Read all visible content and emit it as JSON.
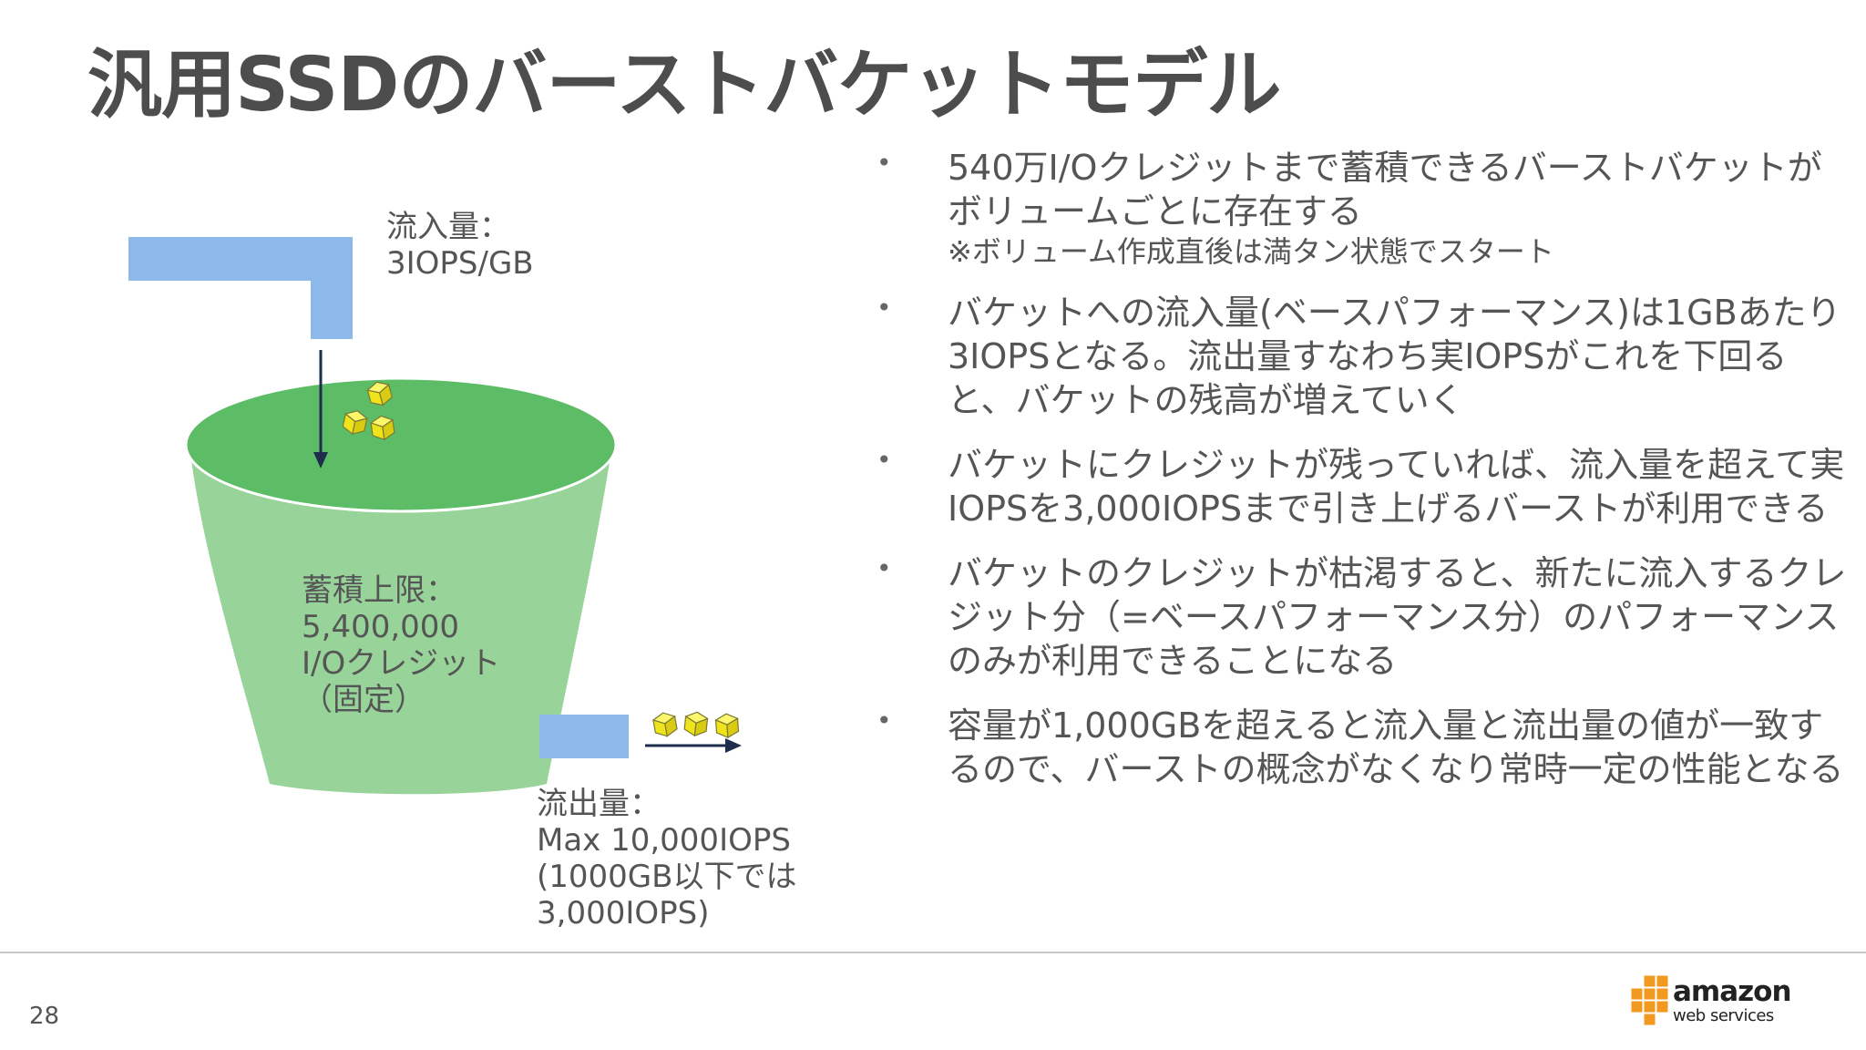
{
  "slide": {
    "title": "汎用SSDのバーストバケットモデル",
    "page_number": "28"
  },
  "diagram": {
    "inflow_label": [
      "流入量：",
      "3IOPS/GB"
    ],
    "capacity_label": [
      "蓄積上限：",
      "5,400,000",
      "I/Oクレジット",
      "（固定）"
    ],
    "outflow_label": [
      "流出量：",
      "Max 10,000IOPS",
      "(1000GB以下では",
      "3,000IOPS)"
    ]
  },
  "bullets": [
    {
      "text": "540万I/Oクレジットまで蓄積できるバーストバケットがボリュームごとに存在する",
      "sub": "※ボリューム作成直後は満タン状態でスタート"
    },
    {
      "text": "バケットへの流入量(ベースパフォーマンス)は1GBあたり3IOPSとなる。流出量すなわち実IOPSがこれを下回ると、バケットの残高が増えていく"
    },
    {
      "text": "バケットにクレジットが残っていれば、流入量を超えて実IOPSを3,000IOPSまで引き上げるバーストが利用できる"
    },
    {
      "text": "バケットのクレジットが枯渇すると、新たに流入するクレジット分（=ベースパフォーマンス分）のパフォーマンスのみが利用できることになる"
    },
    {
      "text": "容量が1,000GBを超えると流入量と流出量の値が一致するので、バーストの概念がなくなり常時一定の性能となる"
    }
  ],
  "logo": {
    "name": "amazon",
    "sub": "web services"
  },
  "colors": {
    "bucket_body": "#98d39a",
    "bucket_top": "#5cbd66",
    "pipe": "#8db8ea",
    "credit_cube": "#f4ec2c",
    "arrow": "#1f2d4d",
    "logo_orange": "#f29a1f"
  }
}
